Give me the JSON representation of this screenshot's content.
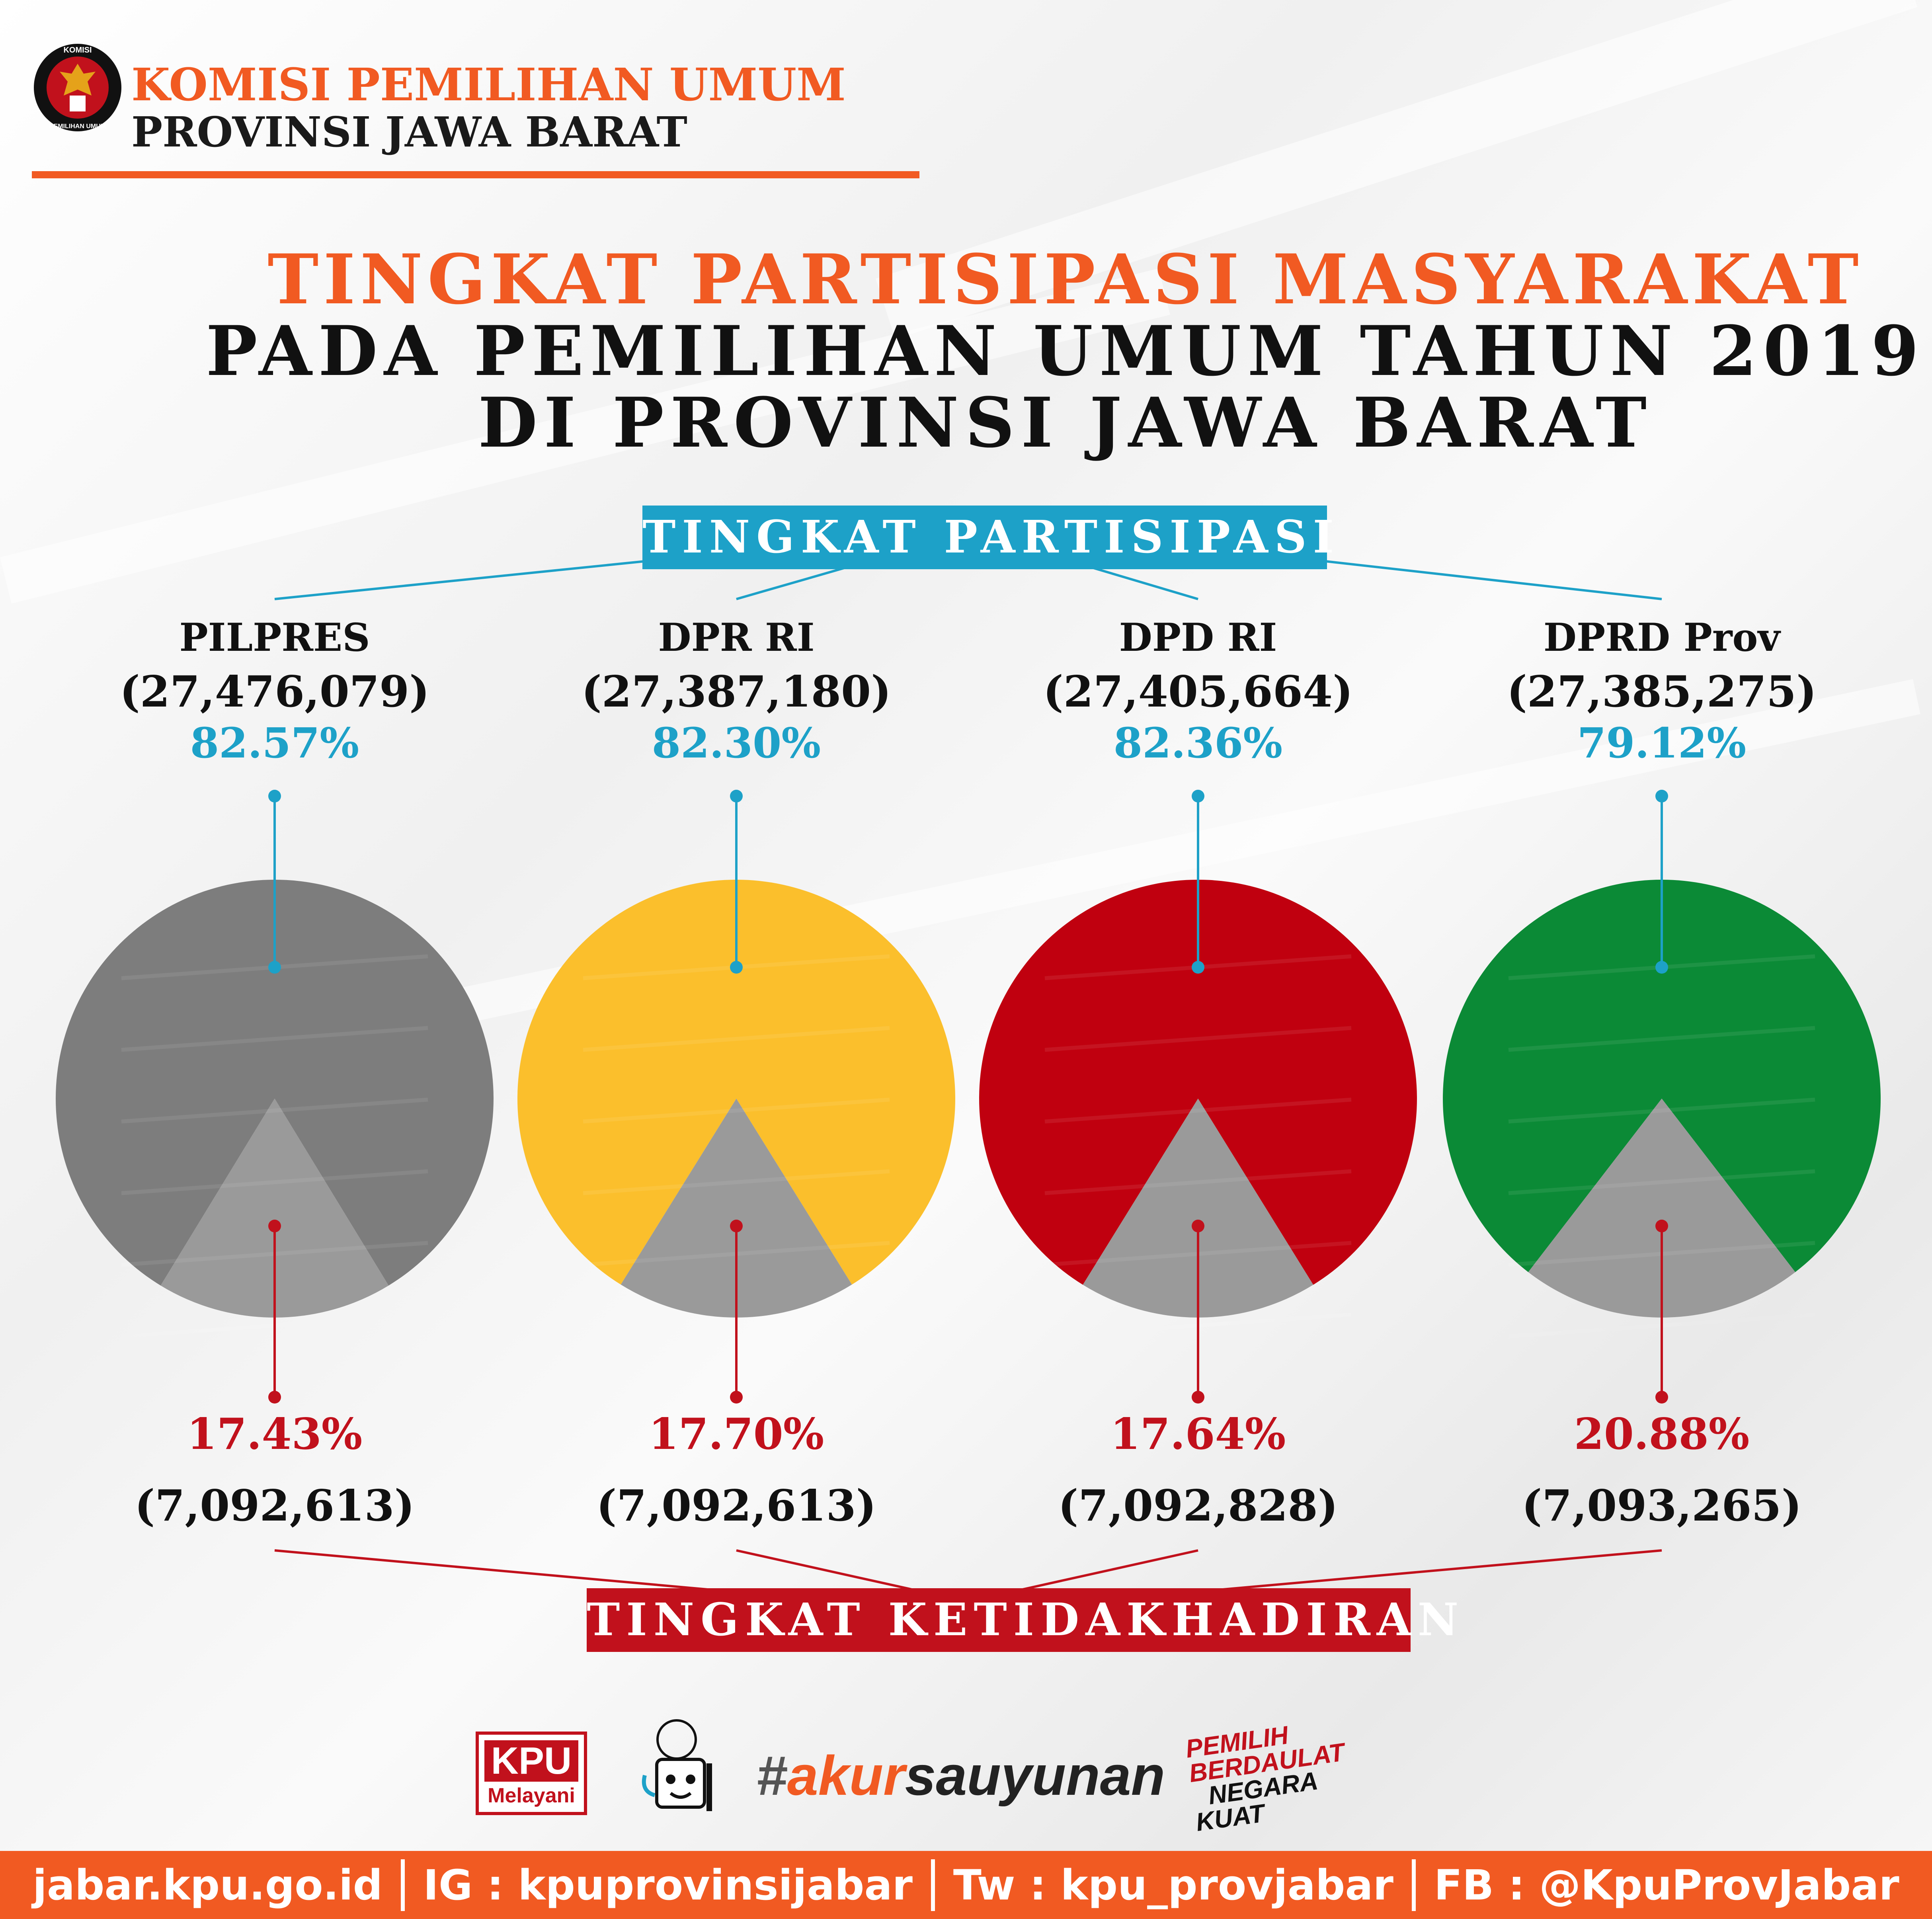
{
  "header": {
    "org_line1": "KOMISI PEMILIHAN UMUM",
    "org_line2": "PROVINSI JAWA BARAT",
    "logo_text_top": "KOMISI",
    "logo_text_bottom": "PEMILIHAN UMUM"
  },
  "title": {
    "line1": "TINGKAT PARTISIPASI MASYARAKAT",
    "line2": "PADA PEMILIHAN UMUM TAHUN 2019",
    "line3": "DI PROVINSI JAWA BARAT"
  },
  "banners": {
    "participation": "TINGKAT PARTISIPASI",
    "absence": "TINGKAT KETIDAKHADIRAN"
  },
  "colors": {
    "accent_orange": "#f15a22",
    "participation_blue": "#1da1c8",
    "absence_red": "#c1111c",
    "absence_slice_gray": "#9a9a9a"
  },
  "chart_data": {
    "type": "pie",
    "title": "TINGKAT PARTISIPASI MASYARAKAT PADA PEMILIHAN UMUM TAHUN 2019 DI PROVINSI JAWA BARAT",
    "categories": [
      "PILPRES",
      "DPR RI",
      "DPD RI",
      "DPRD Prov"
    ],
    "pies": [
      {
        "name": "PILPRES",
        "color": "#7d7d7d",
        "participation_count": "(27,476,079)",
        "participation_pct_label": "82.57%",
        "absence_pct_label": "17.43%",
        "absence_count": "(7,092,613)",
        "participation_pct": 82.57,
        "absence_pct": 17.43
      },
      {
        "name": "DPR RI",
        "color": "#fbbf2c",
        "participation_count": "(27,387,180)",
        "participation_pct_label": "82.30%",
        "absence_pct_label": "17.70%",
        "absence_count": "(7,092,613)",
        "participation_pct": 82.3,
        "absence_pct": 17.7
      },
      {
        "name": "DPD RI",
        "color": "#c0000f",
        "participation_count": "(27,405,664)",
        "participation_pct_label": "82.36%",
        "absence_pct_label": "17.64%",
        "absence_count": "(7,092,828)",
        "participation_pct": 82.36,
        "absence_pct": 17.64
      },
      {
        "name": "DPRD Prov",
        "color": "#0b8a36",
        "participation_count": "(27,385,275)",
        "participation_pct_label": "79.12%",
        "absence_pct_label": "20.88%",
        "absence_count": "(7,093,265)",
        "participation_pct": 79.12,
        "absence_pct": 20.88
      }
    ]
  },
  "logos": {
    "kpu_melayani_line1": "KPU",
    "kpu_melayani_line2": "Melayani",
    "hashtag_hash": "#",
    "hashtag_akur": "akur",
    "hashtag_rest": "sauyunan",
    "slogan_line1": "PEMILIH",
    "slogan_line2": "BERDAULAT",
    "slogan_line3": "NEGARA",
    "slogan_line4": "KUAT"
  },
  "footer": {
    "website": "jabar.kpu.go.id",
    "instagram": "IG : kpuprovinsijabar",
    "twitter": "Tw : kpu_provjabar",
    "facebook": "FB : @KpuProvJabar"
  }
}
